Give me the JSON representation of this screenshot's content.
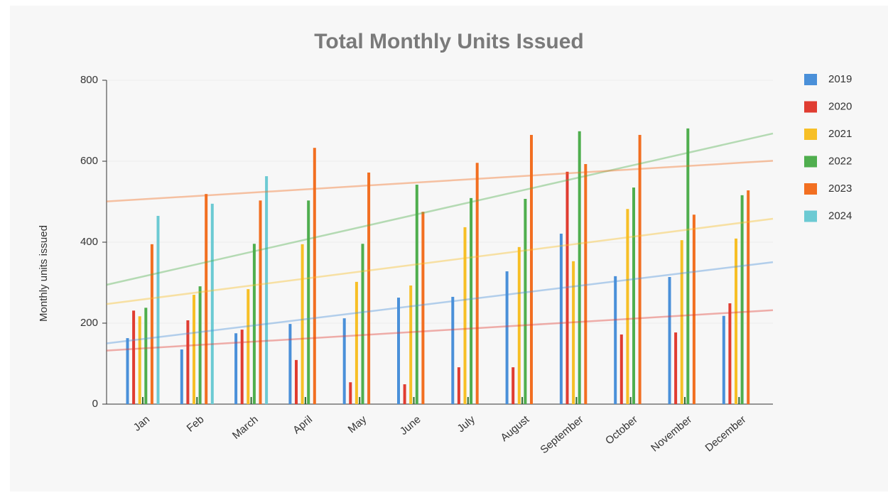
{
  "chart_data": {
    "type": "bar",
    "title": "Total Monthly Units Issued",
    "y_label": "Monthly units issued",
    "categories": [
      "Jan",
      "Feb",
      "March",
      "April",
      "May",
      "June",
      "July",
      "August",
      "September",
      "October",
      "November",
      "December"
    ],
    "series": [
      {
        "name": "2019",
        "color": "#4a90d9",
        "values": [
          163,
          135,
          175,
          198,
          212,
          263,
          265,
          328,
          421,
          316,
          314,
          218
        ]
      },
      {
        "name": "2020",
        "color": "#e03c31",
        "values": [
          231,
          207,
          184,
          109,
          54,
          49,
          91,
          91,
          574,
          172,
          177,
          249
        ]
      },
      {
        "name": "2021",
        "color": "#f7bf26",
        "values": [
          217,
          270,
          284,
          395,
          302,
          293,
          437,
          388,
          353,
          482,
          405,
          409
        ]
      },
      {
        "name": "2022",
        "color": "#4fae4e",
        "values": [
          238,
          291,
          396,
          503,
          396,
          542,
          509,
          507,
          674,
          535,
          681,
          516
        ]
      },
      {
        "name": "2023",
        "color": "#f26f21",
        "values": [
          395,
          519,
          503,
          633,
          572,
          475,
          596,
          665,
          593,
          665,
          468,
          528
        ]
      },
      {
        "name": "2024",
        "color": "#6ccad3",
        "values": [
          465,
          495,
          563,
          null,
          null,
          null,
          null,
          null,
          null,
          null,
          null,
          null
        ]
      }
    ],
    "ylim": [
      0,
      800
    ],
    "yticks": [
      0,
      200,
      400,
      600,
      800
    ],
    "trendline": true,
    "legend": "right"
  }
}
